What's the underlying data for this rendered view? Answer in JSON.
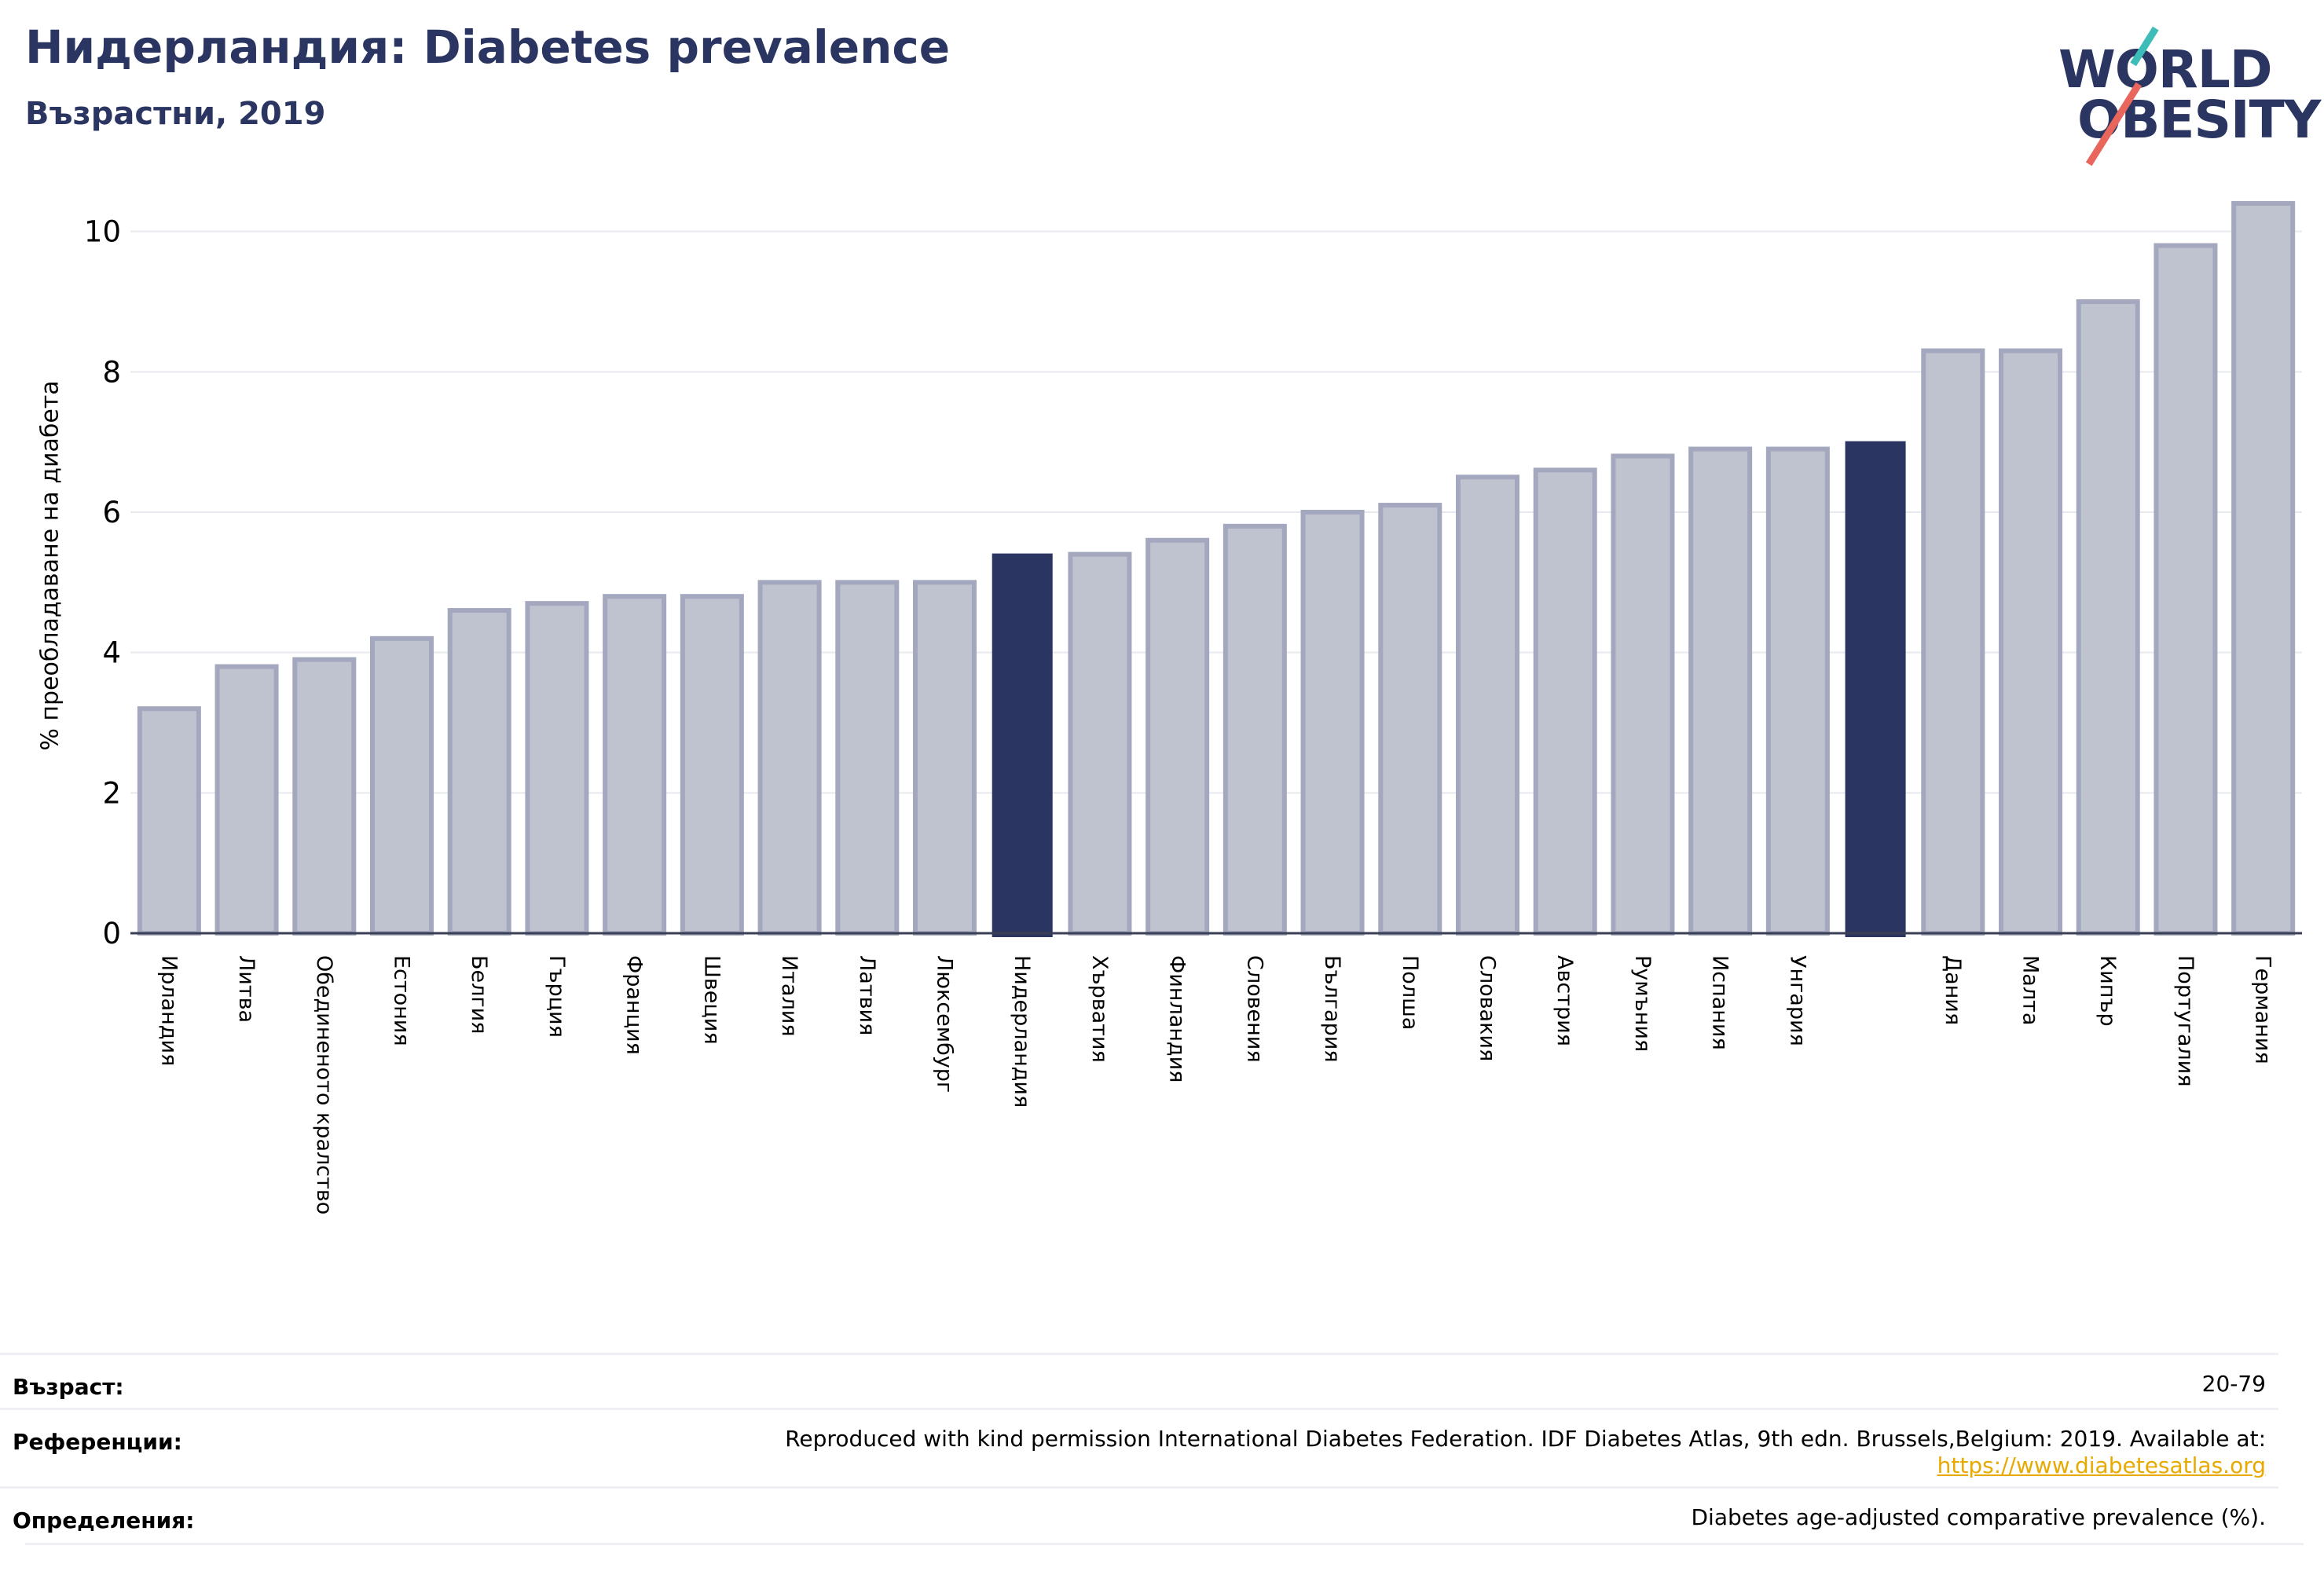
{
  "title": "Нидерландия: Diabetes prevalence",
  "subtitle": "Възрастни, 2019",
  "logo": {
    "line1": "WORLD",
    "line2": "OBESITY"
  },
  "chart_data": {
    "type": "bar",
    "ylabel": "% преобладаване на диабета",
    "ylim": [
      0,
      10.5
    ],
    "yticks": [
      0,
      2,
      4,
      6,
      8,
      10
    ],
    "grid": true,
    "colors": {
      "highlight": "#2a3561",
      "bar_fill": "#bfc2cf",
      "bar_edge": "#a3a8be"
    },
    "categories": [
      "Ирландия",
      "Литва",
      "Обединеното кралство",
      "Естония",
      "Белгия",
      "Гърция",
      "Франция",
      "Швеция",
      "Италия",
      "Латвия",
      "Люксембург",
      "Нидерландия",
      "Хърватия",
      "Финландия",
      "Словения",
      "България",
      "Полша",
      "Словакия",
      "Австрия",
      "Румъния",
      "Испания",
      "Унгария",
      "",
      "Дания",
      "Малта",
      "Кипър",
      "Португалия",
      "Германия"
    ],
    "values": [
      3.2,
      3.8,
      3.9,
      4.2,
      4.6,
      4.7,
      4.8,
      4.8,
      5.0,
      5.0,
      5.0,
      5.4,
      5.4,
      5.6,
      5.8,
      6.0,
      6.1,
      6.5,
      6.6,
      6.8,
      6.9,
      6.9,
      7.0,
      8.3,
      8.3,
      9.0,
      9.8,
      10.4
    ],
    "highlighted": [
      11,
      22
    ]
  },
  "info": {
    "age_label": "Възраст:",
    "age_value": "20-79",
    "refs_label": "Референции:",
    "refs_value": "Reproduced with kind permission International Diabetes Federation. IDF Diabetes Atlas, 9th edn. Brussels,Belgium: 2019. Available at:",
    "refs_link": "https://www.diabetesatlas.org",
    "defs_label": "Определения:",
    "defs_value": "Diabetes age-adjusted comparative prevalence (%)."
  }
}
